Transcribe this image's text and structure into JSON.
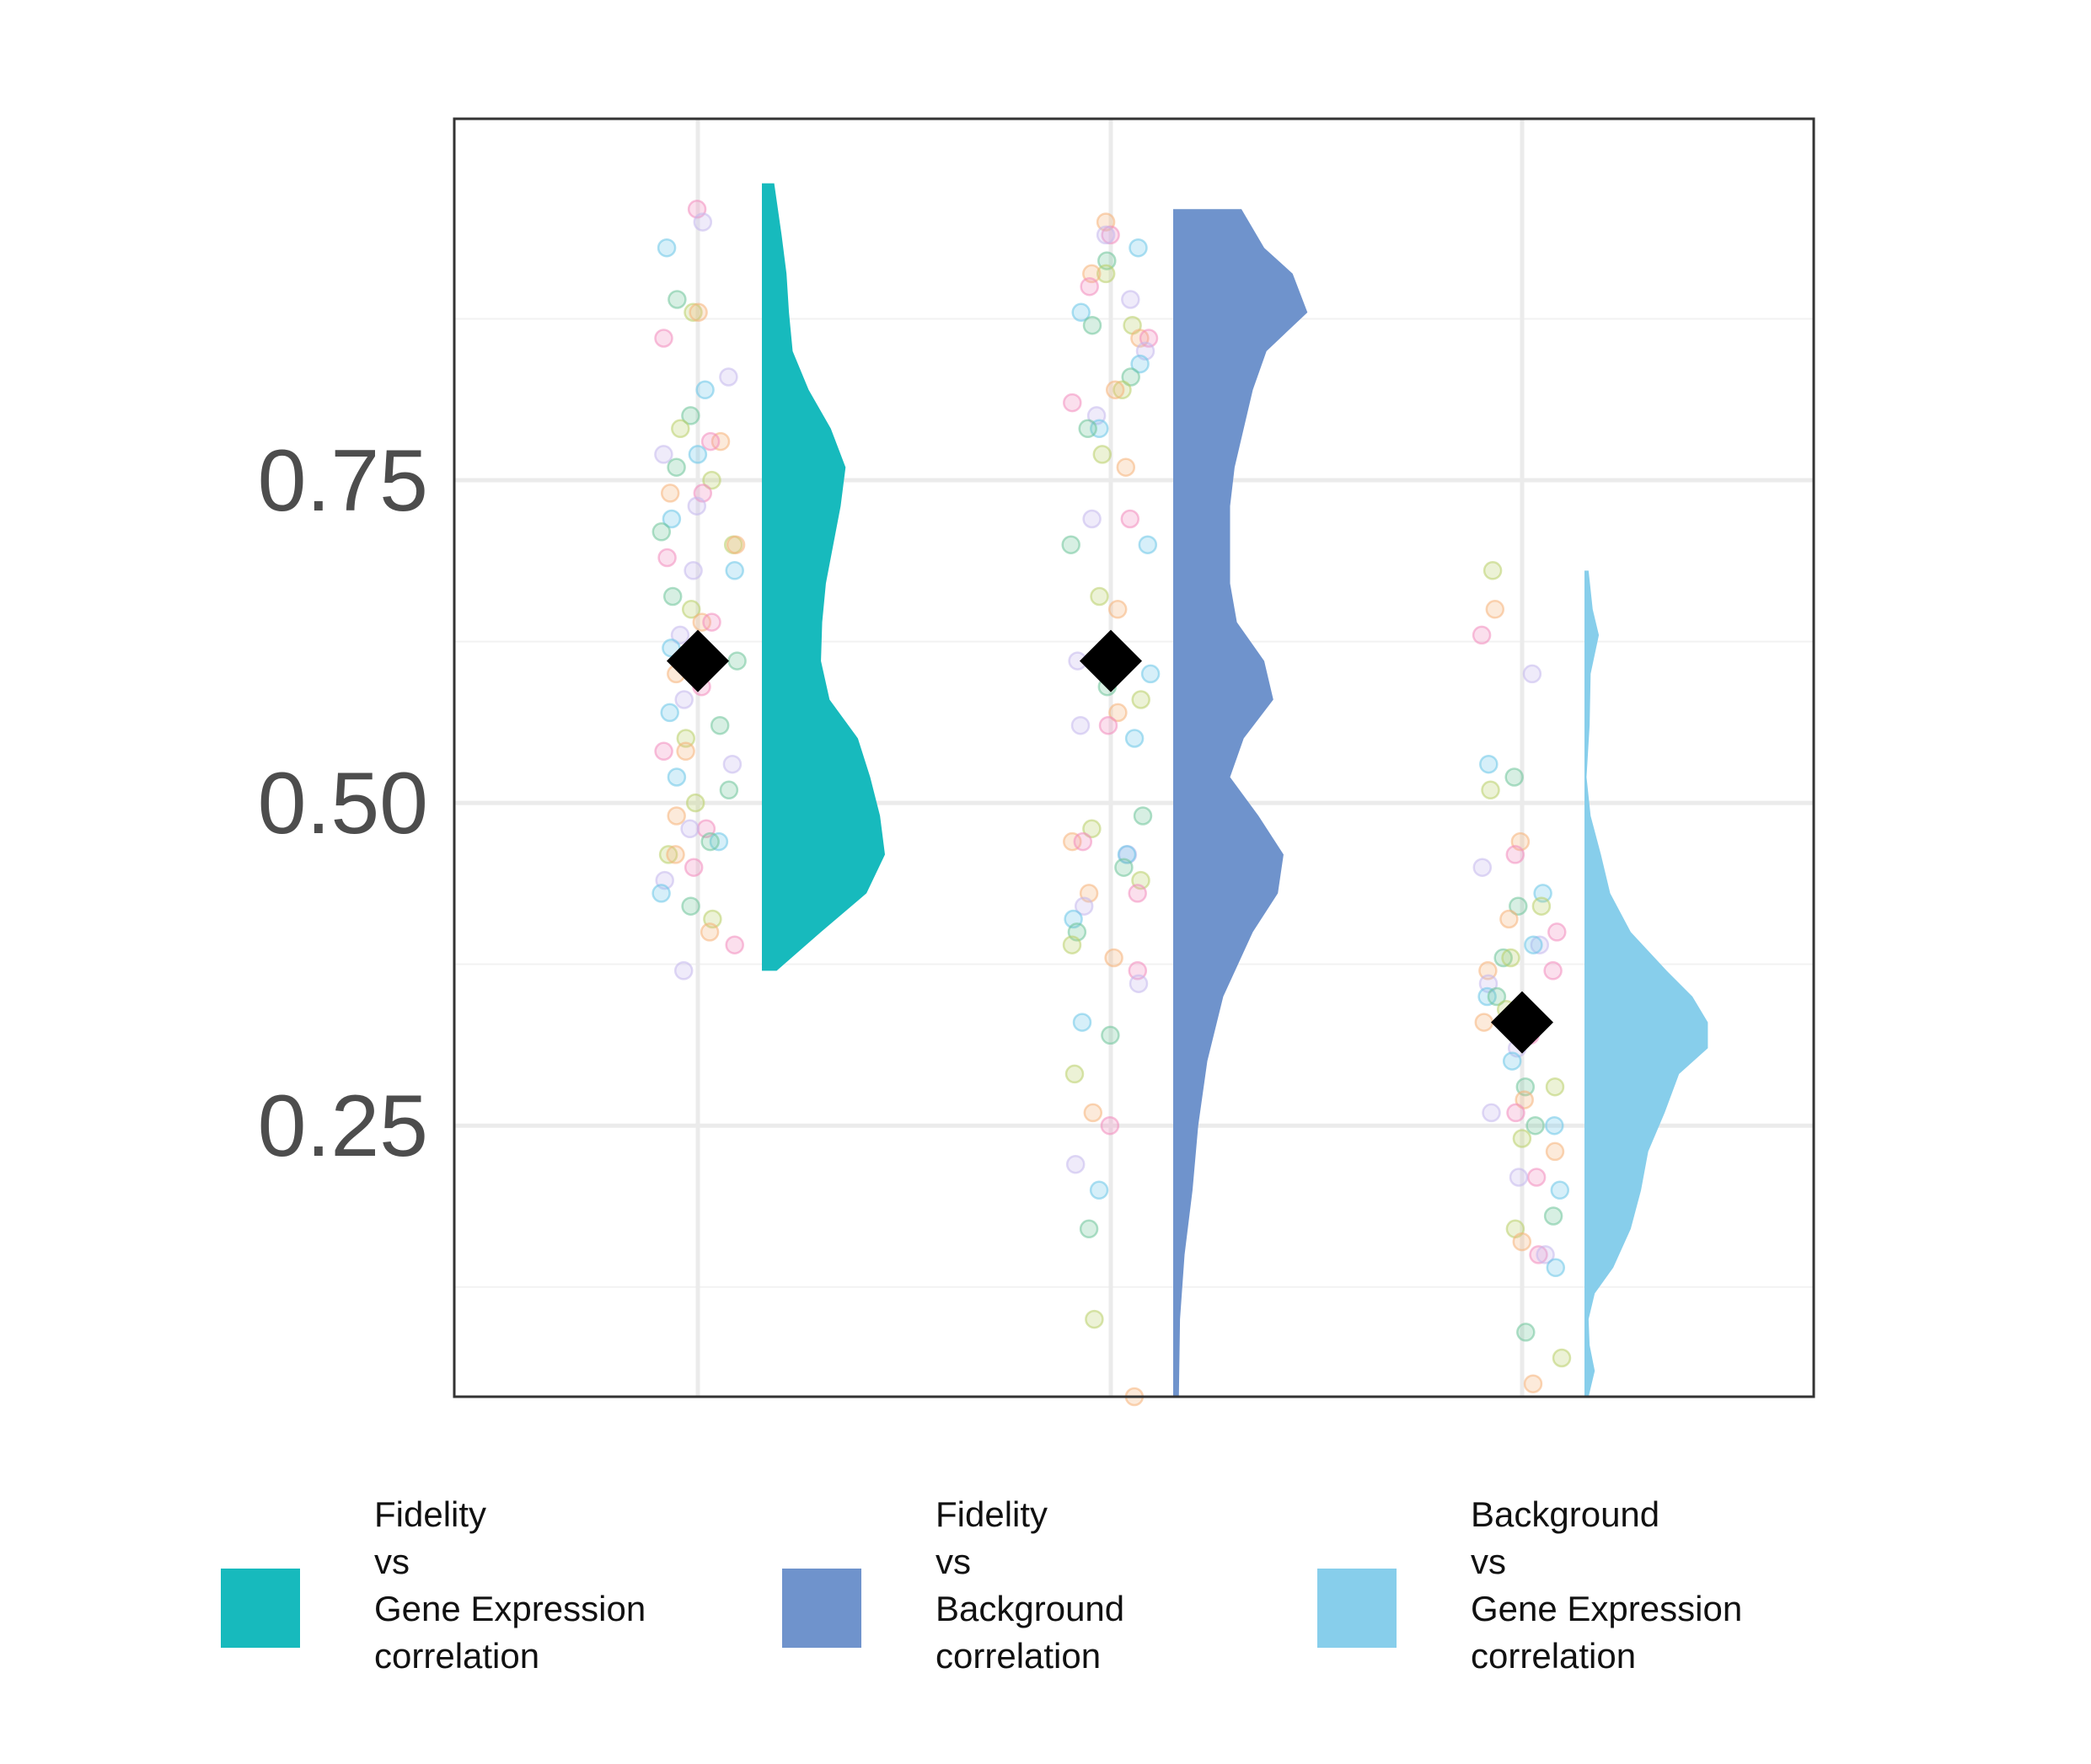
{
  "chart_data": {
    "type": "raincloud",
    "title": "",
    "xlabel": "",
    "ylabel": "",
    "ylim": [
      0.04,
      1.03
    ],
    "yticks": [
      "0.25",
      "0.50",
      "0.75"
    ],
    "grid": true,
    "legend_placement": "bottom",
    "mean_marker": "black diamond",
    "point_palette": [
      "#F28CBD",
      "#F5B37A",
      "#B9CF6A",
      "#6FC59A",
      "#6CC6E8",
      "#C5B8EC"
    ],
    "series": [
      {
        "name": "Fidelity vs Gene Expression correlation",
        "legend_lines": [
          "Fidelity",
          "vs",
          "Gene Expression",
          "correlation"
        ],
        "color": "#17BABD",
        "mean": 0.61,
        "min": 0.37,
        "max": 0.98,
        "density": [
          [
            0.37,
            0.12
          ],
          [
            0.4,
            0.48
          ],
          [
            0.43,
            0.85
          ],
          [
            0.46,
            1.0
          ],
          [
            0.49,
            0.96
          ],
          [
            0.52,
            0.88
          ],
          [
            0.55,
            0.78
          ],
          [
            0.58,
            0.55
          ],
          [
            0.61,
            0.48
          ],
          [
            0.64,
            0.49
          ],
          [
            0.67,
            0.52
          ],
          [
            0.7,
            0.58
          ],
          [
            0.73,
            0.64
          ],
          [
            0.76,
            0.68
          ],
          [
            0.79,
            0.56
          ],
          [
            0.82,
            0.38
          ],
          [
            0.85,
            0.25
          ],
          [
            0.88,
            0.22
          ],
          [
            0.91,
            0.2
          ],
          [
            0.94,
            0.16
          ],
          [
            0.98,
            0.1
          ]
        ],
        "points": [
          0.96,
          0.95,
          0.93,
          0.89,
          0.88,
          0.88,
          0.86,
          0.83,
          0.82,
          0.8,
          0.79,
          0.78,
          0.78,
          0.77,
          0.77,
          0.76,
          0.75,
          0.74,
          0.74,
          0.73,
          0.72,
          0.71,
          0.7,
          0.7,
          0.69,
          0.68,
          0.68,
          0.66,
          0.65,
          0.64,
          0.64,
          0.63,
          0.62,
          0.61,
          0.61,
          0.6,
          0.59,
          0.58,
          0.57,
          0.56,
          0.55,
          0.54,
          0.54,
          0.53,
          0.52,
          0.51,
          0.5,
          0.49,
          0.48,
          0.48,
          0.47,
          0.47,
          0.46,
          0.46,
          0.45,
          0.44,
          0.43,
          0.42,
          0.41,
          0.4,
          0.39,
          0.37
        ]
      },
      {
        "name": "Fidelity vs Background correlation",
        "legend_lines": [
          "Fidelity",
          "vs",
          "Background",
          "correlation"
        ],
        "color": "#6F93CC",
        "mean": 0.61,
        "min": 0.04,
        "max": 0.96,
        "density": [
          [
            0.04,
            0.05
          ],
          [
            0.1,
            0.06
          ],
          [
            0.15,
            0.1
          ],
          [
            0.2,
            0.17
          ],
          [
            0.25,
            0.22
          ],
          [
            0.3,
            0.3
          ],
          [
            0.35,
            0.44
          ],
          [
            0.4,
            0.7
          ],
          [
            0.43,
            0.92
          ],
          [
            0.46,
            0.97
          ],
          [
            0.49,
            0.75
          ],
          [
            0.52,
            0.5
          ],
          [
            0.55,
            0.62
          ],
          [
            0.58,
            0.88
          ],
          [
            0.61,
            0.8
          ],
          [
            0.64,
            0.56
          ],
          [
            0.67,
            0.5
          ],
          [
            0.7,
            0.5
          ],
          [
            0.73,
            0.5
          ],
          [
            0.76,
            0.54
          ],
          [
            0.79,
            0.62
          ],
          [
            0.82,
            0.7
          ],
          [
            0.85,
            0.82
          ],
          [
            0.88,
            1.18
          ],
          [
            0.91,
            1.05
          ],
          [
            0.93,
            0.8
          ],
          [
            0.96,
            0.6
          ]
        ],
        "points": [
          0.95,
          0.94,
          0.94,
          0.93,
          0.92,
          0.91,
          0.91,
          0.9,
          0.89,
          0.88,
          0.87,
          0.87,
          0.86,
          0.86,
          0.85,
          0.84,
          0.83,
          0.82,
          0.82,
          0.81,
          0.8,
          0.79,
          0.79,
          0.77,
          0.76,
          0.72,
          0.72,
          0.7,
          0.7,
          0.66,
          0.65,
          0.62,
          0.61,
          0.6,
          0.59,
          0.58,
          0.57,
          0.56,
          0.56,
          0.55,
          0.49,
          0.48,
          0.47,
          0.47,
          0.46,
          0.46,
          0.45,
          0.44,
          0.43,
          0.43,
          0.42,
          0.41,
          0.4,
          0.39,
          0.38,
          0.37,
          0.36,
          0.33,
          0.32,
          0.29,
          0.26,
          0.25,
          0.22,
          0.2,
          0.17,
          0.1,
          0.04
        ]
      },
      {
        "name": "Background vs Gene Expression correlation",
        "legend_lines": [
          "Background",
          "vs",
          "Gene Expression",
          "correlation"
        ],
        "color": "#87CEEB",
        "mean": 0.33,
        "min": 0.04,
        "max": 0.68,
        "density": [
          [
            0.04,
            0.04
          ],
          [
            0.06,
            0.1
          ],
          [
            0.08,
            0.05
          ],
          [
            0.1,
            0.04
          ],
          [
            0.12,
            0.1
          ],
          [
            0.14,
            0.28
          ],
          [
            0.17,
            0.45
          ],
          [
            0.2,
            0.55
          ],
          [
            0.23,
            0.62
          ],
          [
            0.26,
            0.78
          ],
          [
            0.29,
            0.92
          ],
          [
            0.31,
            1.2
          ],
          [
            0.33,
            1.2
          ],
          [
            0.35,
            1.05
          ],
          [
            0.37,
            0.8
          ],
          [
            0.4,
            0.45
          ],
          [
            0.43,
            0.25
          ],
          [
            0.46,
            0.16
          ],
          [
            0.49,
            0.06
          ],
          [
            0.52,
            0.02
          ],
          [
            0.56,
            0.05
          ],
          [
            0.6,
            0.06
          ],
          [
            0.63,
            0.14
          ],
          [
            0.65,
            0.08
          ],
          [
            0.68,
            0.04
          ]
        ],
        "points": [
          0.68,
          0.65,
          0.63,
          0.6,
          0.53,
          0.52,
          0.51,
          0.47,
          0.46,
          0.45,
          0.43,
          0.42,
          0.42,
          0.41,
          0.4,
          0.39,
          0.39,
          0.38,
          0.38,
          0.37,
          0.37,
          0.36,
          0.35,
          0.35,
          0.34,
          0.33,
          0.32,
          0.31,
          0.3,
          0.28,
          0.28,
          0.27,
          0.26,
          0.26,
          0.25,
          0.25,
          0.24,
          0.23,
          0.21,
          0.21,
          0.2,
          0.18,
          0.17,
          0.16,
          0.15,
          0.15,
          0.14,
          0.09,
          0.07,
          0.05
        ]
      }
    ]
  }
}
